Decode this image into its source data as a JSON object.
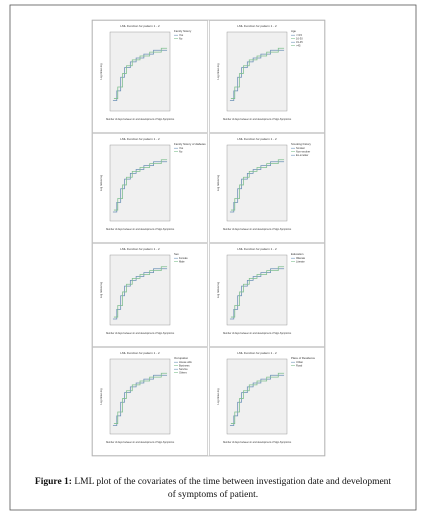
{
  "panels": [
    {
      "title": "LML Function for pattern 1 - 2",
      "legend_title": "Family history",
      "legend": [
        "Yes",
        "No"
      ]
    },
    {
      "title": "LML Function for pattern 1 - 2",
      "legend_title": "Age",
      "legend": [
        "<=15",
        "16-30",
        "31-45",
        ">45"
      ]
    },
    {
      "title": "LML Function for pattern 1 - 2",
      "legend_title": "Family history of diabetes",
      "legend": [
        "Yes",
        "No"
      ]
    },
    {
      "title": "LML Function for pattern 1 - 2",
      "legend_title": "Smoking history",
      "legend": [
        "Smoker",
        "Non-smoker",
        "Ex-smoker"
      ]
    },
    {
      "title": "LML Function for pattern 1 - 2",
      "legend_title": "Sex",
      "legend": [
        "Female",
        "Male"
      ]
    },
    {
      "title": "LML Function for pattern 1 - 2",
      "legend_title": "Education",
      "legend": [
        "Illiterate",
        "Literate"
      ]
    },
    {
      "title": "LML Function for pattern 1 - 2",
      "legend_title": "Occupation",
      "legend": [
        "House wife",
        "Business",
        "Service",
        "Others"
      ]
    },
    {
      "title": "LML Function for pattern 1 - 2",
      "legend_title": "Place of Residence",
      "legend": [
        "Urban",
        "Rural"
      ]
    }
  ],
  "y_label": "Log minus log",
  "x_label": "Number of days between in and development of Sign-Symptoms",
  "caption": {
    "label": "Figure 1:",
    "text": "LML plot of the covariates of the time between investigation date and development of symptoms of patient."
  }
}
